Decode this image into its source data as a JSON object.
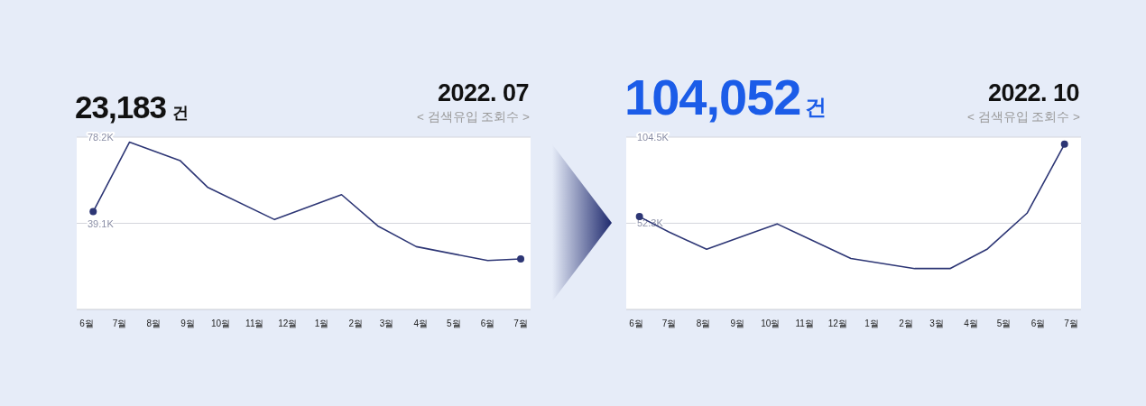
{
  "chart_data": [
    {
      "type": "line",
      "title": "23,183 건",
      "subtitle": "2022. 07",
      "annotations": [
        "< 검색유입 조회수 >"
      ],
      "xlim": [
        "2021-05-23",
        "2022-07-10"
      ],
      "xticks": [
        {
          "value": "2021-06",
          "label": "6월"
        },
        {
          "value": "2021-07",
          "label": "7월"
        },
        {
          "value": "2021-08",
          "label": "8월"
        },
        {
          "value": "2021-09",
          "label": "9월"
        },
        {
          "value": "2021-10",
          "label": "10월"
        },
        {
          "value": "2021-11",
          "label": "11월"
        },
        {
          "value": "2021-12",
          "label": "12월"
        },
        {
          "value": "2022-01",
          "label": "1월"
        },
        {
          "value": "2022-02",
          "label": "2월"
        },
        {
          "value": "2022-03",
          "label": "3월"
        },
        {
          "value": "2022-04",
          "label": "4월"
        },
        {
          "value": "2022-05",
          "label": "5월"
        },
        {
          "value": "2022-06",
          "label": "6월"
        },
        {
          "value": "2022-07",
          "label": "7월"
        }
      ],
      "ylim": [
        0,
        78.2
      ],
      "yticks": [
        {
          "value": 39.1,
          "label": "39.1K"
        },
        {
          "value": 78.2,
          "label": "78.2K"
        }
      ],
      "grid": "y",
      "series": [
        {
          "color": "#2d3675",
          "marker": "none",
          "x": [
            "2021-06-07",
            "2021-07-10",
            "2021-08-25",
            "2021-09-19",
            "2021-11-19",
            "2022-01-19",
            "2022-02-21",
            "2022-03-28",
            "2022-06-01",
            "2022-07-01"
          ],
          "values": [
            44.4,
            75.9,
            67.6,
            55.5,
            40.8,
            52.1,
            37.9,
            28.5,
            22.2,
            22.9
          ]
        },
        {
          "type": "scatter",
          "color": "#2d3675",
          "marker": "circle",
          "x": [
            "2021-06-07",
            "2022-07-01"
          ],
          "values": [
            44.4,
            22.9
          ]
        }
      ]
    },
    {
      "type": "line",
      "title": "104,052건",
      "subtitle": "2022. 10",
      "annotations": [
        "< 검색유입 조회수 >"
      ],
      "xlim": [
        "2021-05-23",
        "2022-07-10"
      ],
      "xticks": [
        {
          "value": "2021-06",
          "label": "6월"
        },
        {
          "value": "2021-07",
          "label": "7월"
        },
        {
          "value": "2021-08",
          "label": "8월"
        },
        {
          "value": "2021-09",
          "label": "9월"
        },
        {
          "value": "2021-10",
          "label": "10월"
        },
        {
          "value": "2021-11",
          "label": "11월"
        },
        {
          "value": "2021-12",
          "label": "12월"
        },
        {
          "value": "2022-01",
          "label": "1월"
        },
        {
          "value": "2022-02",
          "label": "2월"
        },
        {
          "value": "2022-03",
          "label": "3월"
        },
        {
          "value": "2022-04",
          "label": "4월"
        },
        {
          "value": "2022-05",
          "label": "5월"
        },
        {
          "value": "2022-06",
          "label": "6월"
        },
        {
          "value": "2022-07",
          "label": "7월"
        }
      ],
      "ylim": [
        0,
        104.5
      ],
      "yticks": [
        {
          "value": 52.3,
          "label": "52.3K"
        },
        {
          "value": 104.5,
          "label": "104.5K"
        }
      ],
      "grid": "y",
      "series": [
        {
          "color": "#2d3675",
          "marker": "none",
          "x": [
            "2021-06-04",
            "2021-07-01",
            "2021-08-04",
            "2021-10-07",
            "2021-12-13",
            "2022-02-09",
            "2022-03-13",
            "2022-04-16",
            "2022-05-22",
            "2022-06-25"
          ],
          "values": [
            56.3,
            46.9,
            36.5,
            51.9,
            30.9,
            24.8,
            24.8,
            36.7,
            58.4,
            100.2
          ]
        },
        {
          "type": "scatter",
          "color": "#2d3675",
          "marker": "circle",
          "x": [
            "2021-06-04",
            "2022-06-25"
          ],
          "values": [
            56.3,
            100.2
          ]
        }
      ]
    }
  ]
}
